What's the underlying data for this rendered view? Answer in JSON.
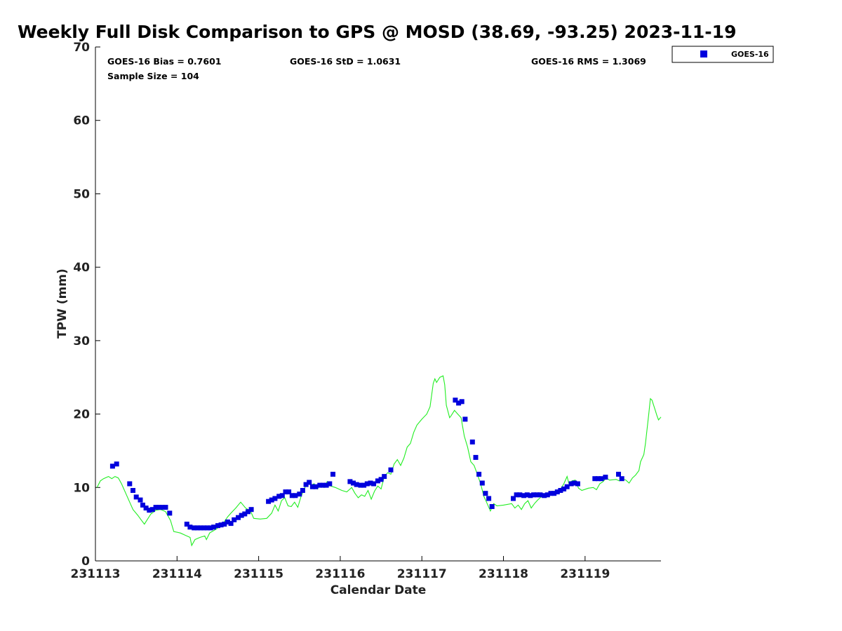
{
  "chart_data": {
    "type": "scatter",
    "title": "Weekly Full Disk Comparison to GPS @ MOSD (38.69, -93.25) 2023-11-19",
    "xlabel": "Calendar Date",
    "ylabel": "TPW (mm)",
    "xlim": [
      231113,
      231119.93
    ],
    "ylim": [
      0,
      70
    ],
    "x_tick_labels": [
      "231113",
      "231114",
      "231115",
      "231116",
      "231117",
      "231118",
      "231119"
    ],
    "y_ticks": [
      0,
      10,
      20,
      30,
      40,
      50,
      60,
      70
    ],
    "grid": false,
    "legend_position": "top-right",
    "stats": {
      "bias": "GOES-16 Bias = 0.7601",
      "std": "GOES-16 StD = 1.0631",
      "rms": "GOES-16 RMS = 1.3069",
      "sample": "Sample Size = 104"
    },
    "colors": {
      "goes": "#0000dd",
      "gps": "#22ee22"
    },
    "series": [
      {
        "name": "GOES-16",
        "type": "scatter",
        "points": [
          [
            231113.21,
            12.9
          ],
          [
            231113.26,
            13.2
          ],
          [
            231113.42,
            10.5
          ],
          [
            231113.46,
            9.6
          ],
          [
            231113.5,
            8.7
          ],
          [
            231113.55,
            8.3
          ],
          [
            231113.58,
            7.6
          ],
          [
            231113.62,
            7.2
          ],
          [
            231113.66,
            6.9
          ],
          [
            231113.7,
            7.0
          ],
          [
            231113.74,
            7.3
          ],
          [
            231113.78,
            7.3
          ],
          [
            231113.82,
            7.3
          ],
          [
            231113.86,
            7.3
          ],
          [
            231113.91,
            6.5
          ],
          [
            231114.12,
            5.0
          ],
          [
            231114.16,
            4.6
          ],
          [
            231114.21,
            4.5
          ],
          [
            231114.25,
            4.5
          ],
          [
            231114.29,
            4.5
          ],
          [
            231114.33,
            4.5
          ],
          [
            231114.37,
            4.5
          ],
          [
            231114.41,
            4.5
          ],
          [
            231114.45,
            4.6
          ],
          [
            231114.5,
            4.8
          ],
          [
            231114.54,
            4.9
          ],
          [
            231114.58,
            5.0
          ],
          [
            231114.62,
            5.3
          ],
          [
            231114.66,
            5.1
          ],
          [
            231114.7,
            5.6
          ],
          [
            231114.75,
            5.9
          ],
          [
            231114.79,
            6.2
          ],
          [
            231114.83,
            6.4
          ],
          [
            231114.87,
            6.7
          ],
          [
            231114.91,
            7.0
          ],
          [
            231115.12,
            8.1
          ],
          [
            231115.16,
            8.3
          ],
          [
            231115.2,
            8.5
          ],
          [
            231115.25,
            8.8
          ],
          [
            231115.29,
            8.9
          ],
          [
            231115.33,
            9.4
          ],
          [
            231115.37,
            9.4
          ],
          [
            231115.41,
            8.9
          ],
          [
            231115.45,
            8.9
          ],
          [
            231115.5,
            9.1
          ],
          [
            231115.54,
            9.6
          ],
          [
            231115.58,
            10.4
          ],
          [
            231115.62,
            10.7
          ],
          [
            231115.66,
            10.1
          ],
          [
            231115.7,
            10.1
          ],
          [
            231115.75,
            10.3
          ],
          [
            231115.79,
            10.3
          ],
          [
            231115.83,
            10.3
          ],
          [
            231115.87,
            10.5
          ],
          [
            231115.91,
            11.8
          ],
          [
            231116.12,
            10.8
          ],
          [
            231116.16,
            10.6
          ],
          [
            231116.2,
            10.4
          ],
          [
            231116.25,
            10.3
          ],
          [
            231116.29,
            10.3
          ],
          [
            231116.33,
            10.5
          ],
          [
            231116.37,
            10.6
          ],
          [
            231116.41,
            10.5
          ],
          [
            231116.46,
            10.9
          ],
          [
            231116.5,
            11.1
          ],
          [
            231116.54,
            11.5
          ],
          [
            231116.62,
            12.4
          ],
          [
            231117.41,
            21.9
          ],
          [
            231117.45,
            21.5
          ],
          [
            231117.49,
            21.7
          ],
          [
            231117.53,
            19.3
          ],
          [
            231117.62,
            16.2
          ],
          [
            231117.66,
            14.1
          ],
          [
            231117.7,
            11.8
          ],
          [
            231117.74,
            10.6
          ],
          [
            231117.78,
            9.2
          ],
          [
            231117.82,
            8.5
          ],
          [
            231117.86,
            7.4
          ],
          [
            231118.12,
            8.5
          ],
          [
            231118.16,
            9.0
          ],
          [
            231118.2,
            9.0
          ],
          [
            231118.25,
            8.9
          ],
          [
            231118.29,
            9.0
          ],
          [
            231118.33,
            8.9
          ],
          [
            231118.37,
            9.0
          ],
          [
            231118.41,
            9.0
          ],
          [
            231118.45,
            9.0
          ],
          [
            231118.5,
            8.9
          ],
          [
            231118.54,
            9.0
          ],
          [
            231118.58,
            9.2
          ],
          [
            231118.62,
            9.2
          ],
          [
            231118.66,
            9.4
          ],
          [
            231118.7,
            9.6
          ],
          [
            231118.74,
            9.8
          ],
          [
            231118.78,
            10.1
          ],
          [
            231118.83,
            10.5
          ],
          [
            231118.87,
            10.6
          ],
          [
            231118.91,
            10.5
          ],
          [
            231119.12,
            11.2
          ],
          [
            231119.16,
            11.2
          ],
          [
            231119.2,
            11.2
          ],
          [
            231119.25,
            11.4
          ],
          [
            231119.41,
            11.8
          ],
          [
            231119.45,
            11.2
          ]
        ]
      },
      {
        "name": "GPS",
        "type": "line",
        "points": [
          [
            231113.02,
            10.0
          ],
          [
            231113.06,
            10.9
          ],
          [
            231113.1,
            11.2
          ],
          [
            231113.16,
            11.5
          ],
          [
            231113.2,
            11.2
          ],
          [
            231113.24,
            11.5
          ],
          [
            231113.28,
            11.3
          ],
          [
            231113.32,
            10.5
          ],
          [
            231113.38,
            9.0
          ],
          [
            231113.42,
            8.0
          ],
          [
            231113.46,
            7.0
          ],
          [
            231113.52,
            6.2
          ],
          [
            231113.56,
            5.6
          ],
          [
            231113.6,
            5.0
          ],
          [
            231113.64,
            5.7
          ],
          [
            231113.68,
            6.4
          ],
          [
            231113.74,
            6.9
          ],
          [
            231113.8,
            7.0
          ],
          [
            231113.86,
            6.7
          ],
          [
            231113.92,
            5.5
          ],
          [
            231113.96,
            4.0
          ],
          [
            231114.04,
            3.8
          ],
          [
            231114.1,
            3.5
          ],
          [
            231114.16,
            3.2
          ],
          [
            231114.18,
            2.1
          ],
          [
            231114.22,
            2.9
          ],
          [
            231114.28,
            3.2
          ],
          [
            231114.34,
            3.4
          ],
          [
            231114.36,
            2.9
          ],
          [
            231114.4,
            3.8
          ],
          [
            231114.46,
            4.2
          ],
          [
            231114.5,
            4.5
          ],
          [
            231114.56,
            5.0
          ],
          [
            231114.62,
            6.0
          ],
          [
            231114.66,
            6.5
          ],
          [
            231114.72,
            7.2
          ],
          [
            231114.78,
            8.0
          ],
          [
            231114.84,
            7.2
          ],
          [
            231114.9,
            6.8
          ],
          [
            231114.94,
            5.8
          ],
          [
            231115.02,
            5.7
          ],
          [
            231115.1,
            5.8
          ],
          [
            231115.16,
            6.5
          ],
          [
            231115.2,
            7.6
          ],
          [
            231115.24,
            6.8
          ],
          [
            231115.28,
            8.2
          ],
          [
            231115.32,
            8.6
          ],
          [
            231115.36,
            7.5
          ],
          [
            231115.4,
            7.4
          ],
          [
            231115.44,
            8.0
          ],
          [
            231115.48,
            7.3
          ],
          [
            231115.52,
            8.8
          ],
          [
            231115.56,
            9.8
          ],
          [
            231115.6,
            10.8
          ],
          [
            231115.64,
            10.3
          ],
          [
            231115.68,
            10.5
          ],
          [
            231115.72,
            9.8
          ],
          [
            231115.76,
            10.5
          ],
          [
            231115.8,
            10.0
          ],
          [
            231115.84,
            10.8
          ],
          [
            231115.88,
            10.2
          ],
          [
            231115.94,
            10.0
          ],
          [
            231116.02,
            9.6
          ],
          [
            231116.08,
            9.4
          ],
          [
            231116.14,
            10.0
          ],
          [
            231116.18,
            9.2
          ],
          [
            231116.22,
            8.6
          ],
          [
            231116.26,
            9.0
          ],
          [
            231116.3,
            8.8
          ],
          [
            231116.34,
            9.6
          ],
          [
            231116.38,
            8.4
          ],
          [
            231116.42,
            9.5
          ],
          [
            231116.46,
            10.2
          ],
          [
            231116.5,
            9.8
          ],
          [
            231116.54,
            11.5
          ],
          [
            231116.58,
            12.0
          ],
          [
            231116.62,
            11.8
          ],
          [
            231116.66,
            13.2
          ],
          [
            231116.7,
            13.8
          ],
          [
            231116.74,
            13.0
          ],
          [
            231116.78,
            14.0
          ],
          [
            231116.82,
            15.5
          ],
          [
            231116.86,
            16.0
          ],
          [
            231116.9,
            17.5
          ],
          [
            231116.94,
            18.5
          ],
          [
            231117.0,
            19.3
          ],
          [
            231117.06,
            20.0
          ],
          [
            231117.1,
            21.0
          ],
          [
            231117.14,
            24.2
          ],
          [
            231117.16,
            24.8
          ],
          [
            231117.18,
            24.3
          ],
          [
            231117.22,
            25.0
          ],
          [
            231117.26,
            25.2
          ],
          [
            231117.28,
            24.0
          ],
          [
            231117.3,
            21.2
          ],
          [
            231117.34,
            19.5
          ],
          [
            231117.36,
            19.8
          ],
          [
            231117.4,
            20.5
          ],
          [
            231117.44,
            20.0
          ],
          [
            231117.48,
            19.5
          ],
          [
            231117.52,
            17.0
          ],
          [
            231117.56,
            15.5
          ],
          [
            231117.6,
            13.5
          ],
          [
            231117.64,
            13.0
          ],
          [
            231117.68,
            11.8
          ],
          [
            231117.72,
            10.5
          ],
          [
            231117.76,
            8.8
          ],
          [
            231117.8,
            7.8
          ],
          [
            231117.84,
            6.8
          ],
          [
            231117.88,
            7.8
          ],
          [
            231117.92,
            7.5
          ],
          [
            231118.0,
            7.6
          ],
          [
            231118.1,
            7.8
          ],
          [
            231118.14,
            7.2
          ],
          [
            231118.18,
            7.6
          ],
          [
            231118.22,
            7.0
          ],
          [
            231118.26,
            7.8
          ],
          [
            231118.3,
            8.2
          ],
          [
            231118.34,
            7.2
          ],
          [
            231118.38,
            7.8
          ],
          [
            231118.42,
            8.3
          ],
          [
            231118.46,
            8.7
          ],
          [
            231118.5,
            8.7
          ],
          [
            231118.54,
            9.1
          ],
          [
            231118.58,
            9.0
          ],
          [
            231118.62,
            9.5
          ],
          [
            231118.66,
            9.3
          ],
          [
            231118.7,
            9.8
          ],
          [
            231118.74,
            10.5
          ],
          [
            231118.78,
            11.5
          ],
          [
            231118.8,
            10.6
          ],
          [
            231118.84,
            10.9
          ],
          [
            231118.88,
            11.0
          ],
          [
            231118.92,
            9.9
          ],
          [
            231118.96,
            9.6
          ],
          [
            231119.04,
            9.9
          ],
          [
            231119.1,
            10.0
          ],
          [
            231119.14,
            9.7
          ],
          [
            231119.18,
            10.5
          ],
          [
            231119.22,
            10.8
          ],
          [
            231119.26,
            11.3
          ],
          [
            231119.3,
            11.0
          ],
          [
            231119.38,
            11.1
          ],
          [
            231119.42,
            10.9
          ],
          [
            231119.46,
            11.2
          ],
          [
            231119.5,
            11.0
          ],
          [
            231119.54,
            10.6
          ],
          [
            231119.58,
            11.3
          ],
          [
            231119.62,
            11.7
          ],
          [
            231119.66,
            12.3
          ],
          [
            231119.68,
            13.5
          ],
          [
            231119.72,
            14.5
          ],
          [
            231119.74,
            16.0
          ],
          [
            231119.78,
            20.0
          ],
          [
            231119.8,
            22.1
          ],
          [
            231119.82,
            21.9
          ],
          [
            231119.86,
            20.5
          ],
          [
            231119.88,
            19.8
          ],
          [
            231119.9,
            19.2
          ],
          [
            231119.93,
            19.6
          ]
        ]
      }
    ]
  }
}
